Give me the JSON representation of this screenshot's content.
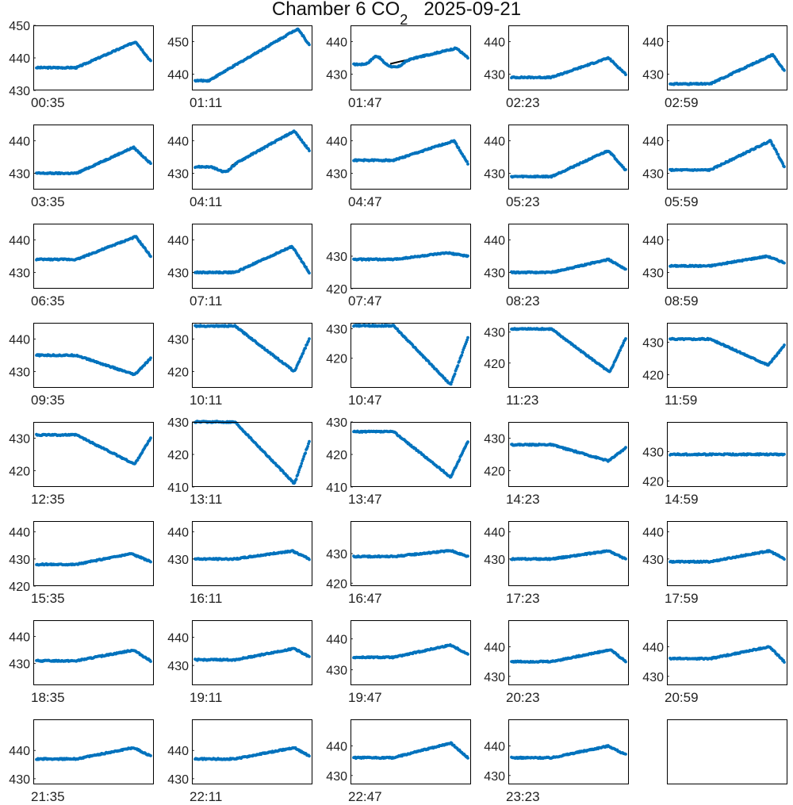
{
  "figure": {
    "title": "Chamber 6 CO",
    "title_sub": "2",
    "title_date": "2025-09-21"
  },
  "colors": {
    "points": "#0072BD",
    "fit_line": "#000000",
    "axes": "#000000"
  },
  "chart_data": [
    {
      "type": "scatter",
      "label": "00:35",
      "ylim": [
        430,
        450
      ],
      "yticks": [
        430,
        440,
        450
      ],
      "shape": {
        "start": 437,
        "flat": 0.35,
        "peak": 445,
        "peak_at": 0.87,
        "end": 439
      }
    },
    {
      "type": "scatter",
      "label": "01:11",
      "ylim": [
        435,
        455
      ],
      "yticks": [
        440,
        450
      ],
      "shape": {
        "start": 438,
        "flat": 0.12,
        "peak": 454,
        "peak_at": 0.9,
        "end": 449
      }
    },
    {
      "type": "scatter",
      "label": "01:47",
      "ylim": [
        425,
        445
      ],
      "yticks": [
        430,
        440
      ],
      "shape": {
        "start": 433,
        "flat": 0.3,
        "peak": 438,
        "peak_at": 0.9,
        "end": 435,
        "bump": [
          0.2,
          2.5
        ],
        "dip": [
          0.38,
          -1.5
        ]
      }
    },
    {
      "type": "scatter",
      "label": "02:23",
      "ylim": [
        425,
        445
      ],
      "yticks": [
        430,
        440
      ],
      "shape": {
        "start": 429,
        "flat": 0.35,
        "peak": 435,
        "peak_at": 0.85,
        "end": 430
      }
    },
    {
      "type": "scatter",
      "label": "02:59",
      "ylim": [
        425,
        445
      ],
      "yticks": [
        430,
        440
      ],
      "shape": {
        "start": 427,
        "flat": 0.35,
        "peak": 436,
        "peak_at": 0.9,
        "end": 431
      }
    },
    {
      "type": "scatter",
      "label": "03:35",
      "ylim": [
        425,
        445
      ],
      "yticks": [
        430,
        440
      ],
      "shape": {
        "start": 430,
        "flat": 0.35,
        "peak": 438,
        "peak_at": 0.85,
        "end": 433
      }
    },
    {
      "type": "scatter",
      "label": "04:11",
      "ylim": [
        425,
        445
      ],
      "yticks": [
        430,
        440
      ],
      "shape": {
        "start": 432,
        "flat": 0.3,
        "peak": 443,
        "peak_at": 0.87,
        "end": 437,
        "dip": [
          0.25,
          -1.5
        ]
      }
    },
    {
      "type": "scatter",
      "label": "04:47",
      "ylim": [
        425,
        445
      ],
      "yticks": [
        430,
        440
      ],
      "shape": {
        "start": 434,
        "flat": 0.35,
        "peak": 440,
        "peak_at": 0.88,
        "end": 433
      }
    },
    {
      "type": "scatter",
      "label": "05:23",
      "ylim": [
        425,
        445
      ],
      "yticks": [
        430,
        440
      ],
      "shape": {
        "start": 429,
        "flat": 0.35,
        "peak": 437,
        "peak_at": 0.85,
        "end": 431
      }
    },
    {
      "type": "scatter",
      "label": "05:59",
      "ylim": [
        425,
        445
      ],
      "yticks": [
        430,
        440
      ],
      "shape": {
        "start": 431,
        "flat": 0.35,
        "peak": 440,
        "peak_at": 0.88,
        "end": 432
      }
    },
    {
      "type": "scatter",
      "label": "06:35",
      "ylim": [
        425,
        445
      ],
      "yticks": [
        430,
        440
      ],
      "shape": {
        "start": 434,
        "flat": 0.35,
        "peak": 441,
        "peak_at": 0.87,
        "end": 435
      }
    },
    {
      "type": "scatter",
      "label": "07:11",
      "ylim": [
        425,
        445
      ],
      "yticks": [
        430,
        440
      ],
      "shape": {
        "start": 430,
        "flat": 0.35,
        "peak": 438,
        "peak_at": 0.85,
        "end": 430
      }
    },
    {
      "type": "scatter",
      "label": "07:47",
      "ylim": [
        420,
        440
      ],
      "yticks": [
        420,
        430
      ],
      "shape": {
        "start": 429,
        "flat": 0.35,
        "peak": 431,
        "peak_at": 0.82,
        "end": 430
      }
    },
    {
      "type": "scatter",
      "label": "08:23",
      "ylim": [
        425,
        445
      ],
      "yticks": [
        430,
        440
      ],
      "shape": {
        "start": 430,
        "flat": 0.35,
        "peak": 434,
        "peak_at": 0.85,
        "end": 431
      }
    },
    {
      "type": "scatter",
      "label": "08:59",
      "ylim": [
        425,
        445
      ],
      "yticks": [
        430,
        440
      ],
      "shape": {
        "start": 432,
        "flat": 0.35,
        "peak": 435,
        "peak_at": 0.85,
        "end": 433
      }
    },
    {
      "type": "scatter",
      "label": "09:35",
      "ylim": [
        425,
        445
      ],
      "yticks": [
        430,
        440
      ],
      "shape": {
        "start": 435,
        "flat": 0.35,
        "peak": 429,
        "peak_at": 0.86,
        "end": 434
      }
    },
    {
      "type": "scatter",
      "label": "10:11",
      "ylim": [
        415,
        435
      ],
      "yticks": [
        420,
        430
      ],
      "shape": {
        "start": 434,
        "flat": 0.35,
        "peak": 420,
        "peak_at": 0.87,
        "end": 430
      }
    },
    {
      "type": "scatter",
      "label": "10:47",
      "ylim": [
        410,
        432
      ],
      "yticks": [
        420,
        430
      ],
      "shape": {
        "start": 431,
        "flat": 0.35,
        "peak": 411,
        "peak_at": 0.85,
        "end": 427
      }
    },
    {
      "type": "scatter",
      "label": "11:23",
      "ylim": [
        412,
        433
      ],
      "yticks": [
        420,
        430
      ],
      "shape": {
        "start": 431,
        "flat": 0.35,
        "peak": 417,
        "peak_at": 0.86,
        "end": 428
      }
    },
    {
      "type": "scatter",
      "label": "11:59",
      "ylim": [
        416,
        436
      ],
      "yticks": [
        420,
        430
      ],
      "shape": {
        "start": 431,
        "flat": 0.35,
        "peak": 423,
        "peak_at": 0.86,
        "end": 429
      }
    },
    {
      "type": "scatter",
      "label": "12:35",
      "ylim": [
        415,
        435
      ],
      "yticks": [
        420,
        430
      ],
      "shape": {
        "start": 431,
        "flat": 0.35,
        "peak": 422,
        "peak_at": 0.86,
        "end": 430
      }
    },
    {
      "type": "scatter",
      "label": "13:11",
      "ylim": [
        410,
        430
      ],
      "yticks": [
        410,
        420,
        430
      ],
      "shape": {
        "start": 430,
        "flat": 0.35,
        "peak": 411,
        "peak_at": 0.87,
        "end": 424
      }
    },
    {
      "type": "scatter",
      "label": "13:47",
      "ylim": [
        410,
        430
      ],
      "yticks": [
        410,
        420,
        430
      ],
      "shape": {
        "start": 427,
        "flat": 0.35,
        "peak": 413,
        "peak_at": 0.85,
        "end": 424
      }
    },
    {
      "type": "scatter",
      "label": "14:23",
      "ylim": [
        415,
        435
      ],
      "yticks": [
        420,
        430
      ],
      "shape": {
        "start": 428,
        "flat": 0.35,
        "peak": 423,
        "peak_at": 0.85,
        "end": 427
      }
    },
    {
      "type": "scatter",
      "label": "14:59",
      "ylim": [
        418,
        440
      ],
      "yticks": [
        420,
        430
      ],
      "shape": {
        "start": 429,
        "flat": 0.35,
        "peak": 429,
        "peak_at": 0.85,
        "end": 429
      }
    },
    {
      "type": "scatter",
      "label": "15:35",
      "ylim": [
        420,
        444
      ],
      "yticks": [
        420,
        430,
        440
      ],
      "shape": {
        "start": 428,
        "flat": 0.35,
        "peak": 432,
        "peak_at": 0.83,
        "end": 429
      }
    },
    {
      "type": "scatter",
      "label": "16:11",
      "ylim": [
        420,
        444
      ],
      "yticks": [
        430,
        440
      ],
      "shape": {
        "start": 430,
        "flat": 0.35,
        "peak": 433,
        "peak_at": 0.85,
        "end": 430
      }
    },
    {
      "type": "scatter",
      "label": "16:47",
      "ylim": [
        419,
        441
      ],
      "yticks": [
        420,
        430
      ],
      "shape": {
        "start": 429,
        "flat": 0.35,
        "peak": 431,
        "peak_at": 0.85,
        "end": 429
      }
    },
    {
      "type": "scatter",
      "label": "17:23",
      "ylim": [
        420,
        444
      ],
      "yticks": [
        430,
        440
      ],
      "shape": {
        "start": 430,
        "flat": 0.35,
        "peak": 433,
        "peak_at": 0.85,
        "end": 430
      }
    },
    {
      "type": "scatter",
      "label": "17:59",
      "ylim": [
        420,
        444
      ],
      "yticks": [
        430,
        440
      ],
      "shape": {
        "start": 429,
        "flat": 0.35,
        "peak": 433,
        "peak_at": 0.87,
        "end": 430
      }
    },
    {
      "type": "scatter",
      "label": "18:35",
      "ylim": [
        422,
        446
      ],
      "yticks": [
        430,
        440
      ],
      "shape": {
        "start": 431,
        "flat": 0.35,
        "peak": 435,
        "peak_at": 0.85,
        "end": 431
      }
    },
    {
      "type": "scatter",
      "label": "19:11",
      "ylim": [
        423,
        446
      ],
      "yticks": [
        430,
        440
      ],
      "shape": {
        "start": 432,
        "flat": 0.35,
        "peak": 436,
        "peak_at": 0.87,
        "end": 433
      }
    },
    {
      "type": "scatter",
      "label": "19:47",
      "ylim": [
        425,
        446
      ],
      "yticks": [
        430,
        440
      ],
      "shape": {
        "start": 434,
        "flat": 0.35,
        "peak": 438,
        "peak_at": 0.85,
        "end": 435
      }
    },
    {
      "type": "scatter",
      "label": "20:23",
      "ylim": [
        427,
        449
      ],
      "yticks": [
        430,
        440
      ],
      "shape": {
        "start": 435,
        "flat": 0.35,
        "peak": 439,
        "peak_at": 0.87,
        "end": 435
      }
    },
    {
      "type": "scatter",
      "label": "20:59",
      "ylim": [
        427,
        449
      ],
      "yticks": [
        430,
        440
      ],
      "shape": {
        "start": 436,
        "flat": 0.35,
        "peak": 440,
        "peak_at": 0.87,
        "end": 435
      }
    },
    {
      "type": "scatter",
      "label": "21:35",
      "ylim": [
        428,
        451
      ],
      "yticks": [
        430,
        440
      ],
      "shape": {
        "start": 437,
        "flat": 0.35,
        "peak": 441,
        "peak_at": 0.85,
        "end": 438
      }
    },
    {
      "type": "scatter",
      "label": "22:11",
      "ylim": [
        428,
        451
      ],
      "yticks": [
        430,
        440
      ],
      "shape": {
        "start": 437,
        "flat": 0.35,
        "peak": 441,
        "peak_at": 0.87,
        "end": 438
      }
    },
    {
      "type": "scatter",
      "label": "22:47",
      "ylim": [
        427,
        449
      ],
      "yticks": [
        430,
        440
      ],
      "shape": {
        "start": 436,
        "flat": 0.35,
        "peak": 441,
        "peak_at": 0.85,
        "end": 436
      }
    },
    {
      "type": "scatter",
      "label": "23:23",
      "ylim": [
        427,
        449
      ],
      "yticks": [
        430,
        440
      ],
      "shape": {
        "start": 436,
        "flat": 0.35,
        "peak": 440,
        "peak_at": 0.85,
        "end": 437
      }
    },
    {
      "type": "empty",
      "label": "",
      "ylim": [
        0,
        1
      ],
      "yticks": []
    }
  ]
}
